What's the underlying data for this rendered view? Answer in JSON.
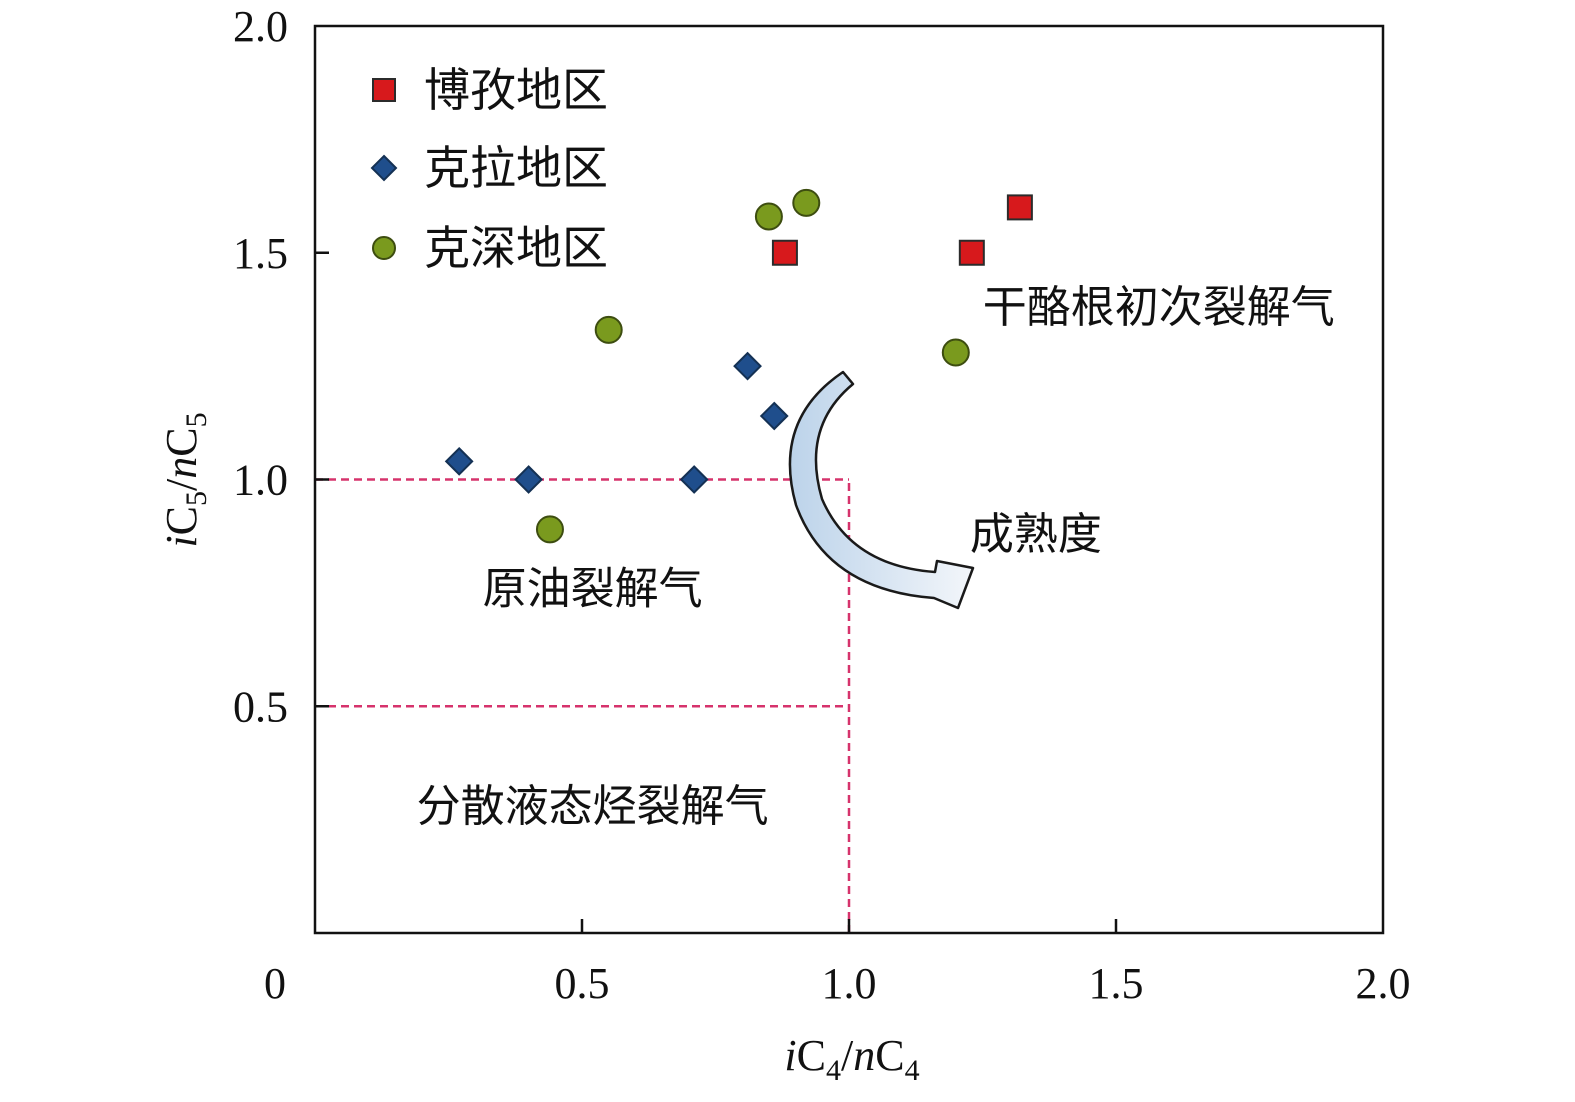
{
  "chart_data": {
    "type": "scatter",
    "xlabel": {
      "prefix": "i",
      "base": "C",
      "sub": "4",
      "sep": "/",
      "prefix2": "n",
      "base2": "C",
      "sub2": "4"
    },
    "ylabel": {
      "prefix": "i",
      "base": "C",
      "sub": "5",
      "sep": "/",
      "prefix2": "n",
      "base2": "C",
      "sub2": "5"
    },
    "xlim": [
      0,
      2.0
    ],
    "ylim": [
      0,
      2.0
    ],
    "x_ticks": [
      {
        "value": 0,
        "label": "0"
      },
      {
        "value": 0.5,
        "label": "0.5"
      },
      {
        "value": 1.0,
        "label": "1.0"
      },
      {
        "value": 1.5,
        "label": "1.5"
      },
      {
        "value": 2.0,
        "label": "2.0"
      }
    ],
    "y_ticks": [
      {
        "value": 0.5,
        "label": "0.5"
      },
      {
        "value": 1.0,
        "label": "1.0"
      },
      {
        "value": 1.5,
        "label": "1.5"
      },
      {
        "value": 2.0,
        "label": "2.0"
      }
    ],
    "grid": false,
    "legend_position": "top-left",
    "series": [
      {
        "name": "博孜地区",
        "marker": "square",
        "color": "#d7191c",
        "points": [
          [
            0.88,
            1.5
          ],
          [
            1.23,
            1.5
          ],
          [
            1.32,
            1.6
          ]
        ]
      },
      {
        "name": "克拉地区",
        "marker": "diamond",
        "color": "#1f4e8c",
        "points": [
          [
            0.27,
            1.04
          ],
          [
            0.4,
            1.0
          ],
          [
            0.71,
            1.0
          ],
          [
            0.81,
            1.25
          ],
          [
            0.86,
            1.14
          ]
        ]
      },
      {
        "name": "克深地区",
        "marker": "circle",
        "color": "#7a9a1e",
        "points": [
          [
            0.44,
            0.89
          ],
          [
            0.55,
            1.33
          ],
          [
            0.85,
            1.58
          ],
          [
            0.92,
            1.61
          ],
          [
            1.2,
            1.28
          ]
        ]
      }
    ],
    "region_lines": [
      {
        "from": [
          0,
          1.0
        ],
        "to": [
          1.0,
          1.0
        ],
        "color": "#d6336c"
      },
      {
        "from": [
          0,
          0.5
        ],
        "to": [
          1.0,
          0.5
        ],
        "color": "#d6336c"
      },
      {
        "from": [
          1.0,
          0
        ],
        "to": [
          1.0,
          1.0
        ],
        "color": "#d6336c"
      }
    ],
    "annotations": [
      {
        "text": "干酪根初次裂解气",
        "x": 1.58,
        "y": 1.38
      },
      {
        "text": "原油裂解气",
        "x": 0.52,
        "y": 0.76
      },
      {
        "text": "分散液态烃裂解气",
        "x": 0.52,
        "y": 0.28
      },
      {
        "text": "成熟度",
        "x": 1.35,
        "y": 0.88
      }
    ]
  }
}
